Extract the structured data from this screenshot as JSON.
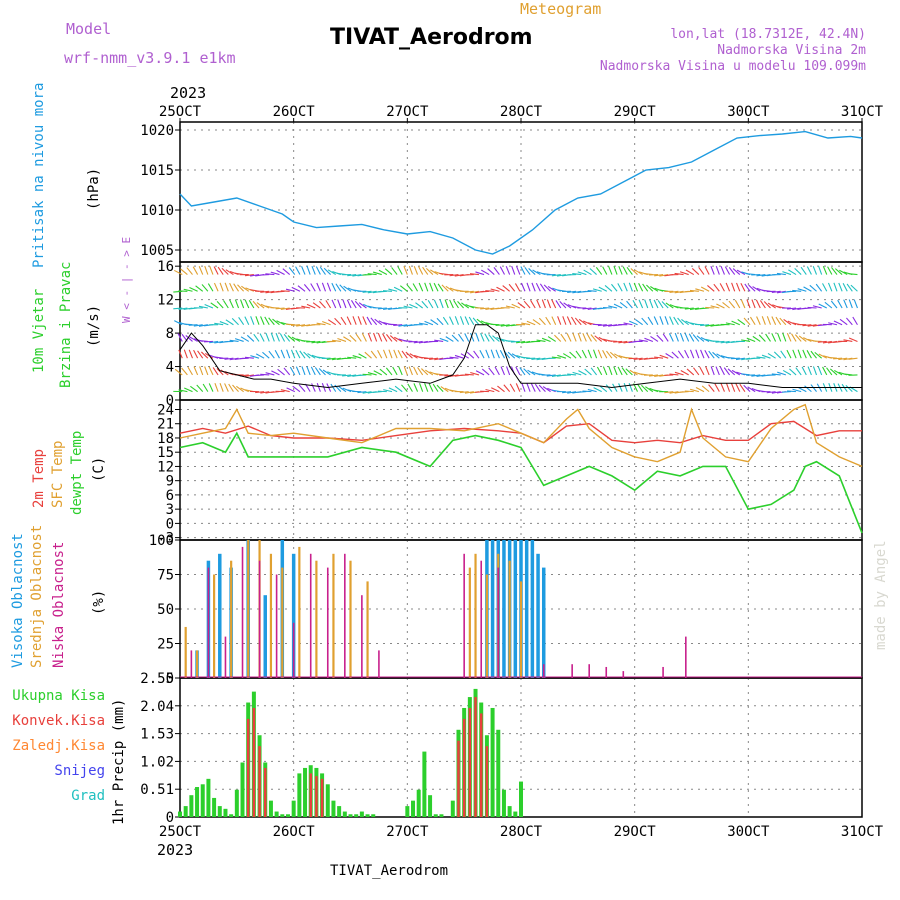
{
  "header": {
    "model_label": "Model",
    "model_name": "wrf-nmm_v3.9.1 e1km",
    "meteogram_label": "Meteogram",
    "station": "TIVAT_Aerodrom",
    "lonlat": "lon,lat (18.7312E, 42.4N)",
    "elevation": "Nadmorska Visina 2m",
    "model_elevation": "Nadmorska Visina u modelu 109.099m",
    "year": "2023",
    "footer_station": "TIVAT_Aerodrom",
    "watermark": "made by Angel"
  },
  "colors": {
    "pressure": "#1e9be0",
    "t2m": "#e8403c",
    "sfc": "#e0a030",
    "dew": "#2ccf2c",
    "cloud_high": "#1e9be0",
    "cloud_mid": "#e0a030",
    "cloud_low": "#c8208c",
    "precip_total": "#2ccf2c",
    "precip_conv": "#e8403c",
    "precip_frozen": "#ff8833",
    "precip_snow": "#4444ee",
    "precip_grad": "#20c0c0",
    "label_purple": "#b060d0"
  },
  "chart_data": [
    {
      "type": "line",
      "panel": "pressure",
      "ylabel_left": "Pritisak na nivou mora",
      "ylabel_unit": "(hPa)",
      "x_ticks": [
        "25OCT",
        "26OCT",
        "27OCT",
        "28OCT",
        "29OCT",
        "30OCT",
        "31OCT"
      ],
      "x_range_days": [
        25,
        31
      ],
      "ylim": [
        1003.5,
        1021
      ],
      "yticks": [
        "1005",
        "1010",
        "1015",
        "1020"
      ],
      "series": [
        {
          "x": [
            25.0,
            25.1,
            25.3,
            25.5,
            25.7,
            25.9,
            26.0,
            26.2,
            26.4,
            26.6,
            26.8,
            27.0,
            27.2,
            27.4,
            27.6,
            27.75,
            27.9,
            28.1,
            28.3,
            28.5,
            28.7,
            28.9,
            29.1,
            29.3,
            29.5,
            29.7,
            29.9,
            30.1,
            30.3,
            30.5,
            30.7,
            30.9,
            31.0
          ],
          "values": [
            1012,
            1010.5,
            1011,
            1011.5,
            1010.5,
            1009.5,
            1008.5,
            1007.8,
            1008,
            1008.2,
            1007.5,
            1007,
            1007.3,
            1006.5,
            1005,
            1004.5,
            1005.5,
            1007.5,
            1010,
            1011.5,
            1012,
            1013.5,
            1015,
            1015.3,
            1016,
            1017.5,
            1019,
            1019.3,
            1019.5,
            1019.8,
            1019,
            1019.2,
            1019
          ]
        }
      ]
    },
    {
      "type": "line",
      "panel": "wind",
      "ylabel_left_1": "10m Vjetar",
      "ylabel_left_2": "Brzina i Pravac",
      "ylabel_unit": "(m/s)",
      "compass_label": "W < - | - > E",
      "ylim": [
        0,
        16.5
      ],
      "yticks": [
        "0",
        "4",
        "8",
        "12",
        "16"
      ],
      "series": [
        {
          "name": "speed",
          "x": [
            25.0,
            25.1,
            25.2,
            25.35,
            25.5,
            25.65,
            25.8,
            26.0,
            26.3,
            26.6,
            26.9,
            27.2,
            27.4,
            27.5,
            27.6,
            27.7,
            27.8,
            27.9,
            28.0,
            28.2,
            28.5,
            28.8,
            29.1,
            29.4,
            29.7,
            30.0,
            30.3,
            30.6,
            31.0
          ],
          "values": [
            6,
            8,
            6.5,
            3.5,
            3,
            2.5,
            2.5,
            2,
            1.5,
            2,
            2.5,
            2,
            3,
            5,
            9,
            9,
            8,
            4,
            2,
            2,
            2,
            1.5,
            2,
            2.5,
            2,
            2,
            1.5,
            1.5,
            1.5
          ]
        }
      ]
    },
    {
      "type": "line",
      "panel": "temperature",
      "ylabel_left_1": "2m Temp",
      "ylabel_left_2": "SFC Temp",
      "ylabel_left_3": "dewpt Temp",
      "ylabel_unit": "(C)",
      "ylim": [
        -3.5,
        26
      ],
      "yticks": [
        "-3",
        "0",
        "3",
        "6",
        "9",
        "12",
        "15",
        "18",
        "21",
        "24"
      ],
      "series": [
        {
          "name": "2m Temp",
          "x": [
            25.0,
            25.2,
            25.4,
            25.6,
            25.8,
            26.0,
            26.3,
            26.6,
            26.9,
            27.2,
            27.5,
            27.8,
            28.0,
            28.2,
            28.4,
            28.6,
            28.8,
            29.0,
            29.2,
            29.4,
            29.6,
            29.8,
            30.0,
            30.2,
            30.4,
            30.6,
            30.8,
            31.0
          ],
          "values": [
            19,
            20,
            19,
            20.5,
            18.5,
            18,
            18,
            17.5,
            18.5,
            19.5,
            20,
            19.5,
            19,
            17,
            20.5,
            21,
            17.5,
            17,
            17.5,
            17,
            18.5,
            17.5,
            17.5,
            21,
            21.5,
            18.5,
            19.5,
            19.5
          ]
        },
        {
          "name": "SFC Temp",
          "x": [
            25.0,
            25.2,
            25.4,
            25.5,
            25.6,
            25.8,
            26.0,
            26.3,
            26.6,
            26.9,
            27.2,
            27.5,
            27.8,
            28.0,
            28.2,
            28.4,
            28.5,
            28.6,
            28.8,
            29.0,
            29.2,
            29.4,
            29.5,
            29.6,
            29.8,
            30.0,
            30.2,
            30.4,
            30.5,
            30.6,
            30.8,
            31.0
          ],
          "values": [
            18,
            19,
            20,
            24,
            19,
            18.5,
            19,
            18,
            17,
            20,
            20,
            19.5,
            21,
            19,
            17,
            22,
            24,
            20,
            16,
            14,
            13,
            15,
            24,
            18,
            14,
            13,
            20,
            24,
            25,
            17,
            14,
            12
          ]
        },
        {
          "name": "dewpt Temp",
          "x": [
            25.0,
            25.2,
            25.4,
            25.5,
            25.6,
            25.8,
            26.0,
            26.3,
            26.6,
            26.9,
            27.2,
            27.4,
            27.6,
            27.8,
            28.0,
            28.2,
            28.4,
            28.6,
            28.8,
            29.0,
            29.2,
            29.4,
            29.6,
            29.8,
            30.0,
            30.2,
            30.4,
            30.5,
            30.6,
            30.8,
            30.9,
            31.0
          ],
          "values": [
            16,
            17,
            15,
            19,
            14,
            14,
            14,
            14,
            16,
            15,
            12,
            17.5,
            18.5,
            17.5,
            16,
            8,
            10,
            12,
            10,
            7,
            11,
            10,
            12,
            12,
            3,
            4,
            7,
            12,
            13,
            10,
            4,
            -2
          ]
        }
      ]
    },
    {
      "type": "bar",
      "panel": "cloud",
      "ylabel_left_1": "Visoka Oblacnost",
      "ylabel_left_2": "Srednja Oblacnost",
      "ylabel_left_3": "Niska Oblacnost",
      "ylabel_unit": "(%)",
      "ylim": [
        0,
        100
      ],
      "yticks": [
        "0",
        "25",
        "50",
        "75",
        "100"
      ],
      "series": [
        {
          "name": "Visoka Oblacnost",
          "x": [
            25.15,
            25.25,
            25.35,
            25.45,
            25.6,
            25.75,
            25.9,
            26.0,
            27.7,
            27.75,
            27.8,
            27.85,
            27.9,
            27.95,
            28.0,
            28.05,
            28.1,
            28.15,
            28.2
          ],
          "values": [
            20,
            85,
            90,
            80,
            100,
            60,
            100,
            90,
            100,
            100,
            100,
            100,
            100,
            100,
            100,
            100,
            100,
            90,
            80
          ]
        },
        {
          "name": "Srednja Oblacnost",
          "x": [
            25.05,
            25.15,
            25.3,
            25.45,
            25.6,
            25.7,
            25.8,
            25.9,
            26.05,
            26.2,
            26.35,
            26.5,
            26.65,
            27.55,
            27.6,
            27.7,
            27.8,
            27.9,
            28.0
          ],
          "values": [
            37,
            20,
            75,
            85,
            100,
            100,
            90,
            80,
            95,
            85,
            90,
            85,
            70,
            80,
            90,
            75,
            90,
            85,
            70
          ]
        },
        {
          "name": "Niska Oblacnost",
          "x": [
            25.1,
            25.25,
            25.4,
            25.55,
            25.7,
            25.85,
            26.0,
            26.15,
            26.3,
            26.45,
            26.6,
            26.75,
            27.5,
            27.65,
            27.8,
            28.2,
            28.45,
            28.6,
            28.75,
            28.9,
            29.25,
            29.45
          ],
          "values": [
            20,
            80,
            30,
            95,
            85,
            75,
            40,
            90,
            80,
            90,
            60,
            20,
            90,
            85,
            80,
            10,
            10,
            10,
            8,
            5,
            8,
            30
          ]
        }
      ]
    },
    {
      "type": "bar",
      "panel": "precip",
      "legend": [
        "Ukupna Kisa",
        "Konvek.Kisa",
        "Zaledj.Kisa",
        "Snijeg",
        "Grad"
      ],
      "ylabel_left": "1hr Precip (mm)",
      "ylim": [
        0,
        2.55
      ],
      "yticks": [
        "0",
        "0.51",
        "1.02",
        "1.53",
        "2.04",
        "2.55"
      ],
      "series": [
        {
          "name": "Ukupna Kisa",
          "x": [
            25.0,
            25.05,
            25.1,
            25.15,
            25.2,
            25.25,
            25.3,
            25.35,
            25.4,
            25.45,
            25.5,
            25.55,
            25.6,
            25.65,
            25.7,
            25.75,
            25.8,
            25.85,
            25.9,
            25.95,
            26.0,
            26.05,
            26.1,
            26.15,
            26.2,
            26.25,
            26.3,
            26.35,
            26.4,
            26.45,
            26.5,
            26.55,
            26.6,
            26.65,
            26.7,
            27.0,
            27.05,
            27.1,
            27.15,
            27.2,
            27.25,
            27.3,
            27.4,
            27.45,
            27.5,
            27.55,
            27.6,
            27.65,
            27.7,
            27.75,
            27.8,
            27.85,
            27.9,
            27.95,
            28.0
          ],
          "values": [
            0.1,
            0.2,
            0.4,
            0.55,
            0.6,
            0.7,
            0.35,
            0.2,
            0.15,
            0.05,
            0.5,
            1.0,
            2.1,
            2.3,
            1.5,
            1.0,
            0.3,
            0.1,
            0.05,
            0.05,
            0.3,
            0.8,
            0.9,
            0.95,
            0.9,
            0.8,
            0.6,
            0.3,
            0.2,
            0.1,
            0.05,
            0.05,
            0.1,
            0.05,
            0.05,
            0.2,
            0.3,
            0.5,
            1.2,
            0.4,
            0.05,
            0.05,
            0.3,
            1.6,
            2.0,
            2.2,
            2.35,
            2.1,
            1.5,
            2.0,
            1.6,
            0.5,
            0.2,
            0.1,
            0.65
          ]
        },
        {
          "name": "Konvek.Kisa",
          "x": [
            25.6,
            25.65,
            25.7,
            25.75,
            26.15,
            26.2,
            26.25,
            27.45,
            27.5,
            27.55,
            27.6,
            27.65,
            27.7
          ],
          "values": [
            1.8,
            2.0,
            1.3,
            0.9,
            0.8,
            0.75,
            0.7,
            1.4,
            1.8,
            2.0,
            2.2,
            1.9,
            1.3
          ]
        }
      ]
    }
  ]
}
